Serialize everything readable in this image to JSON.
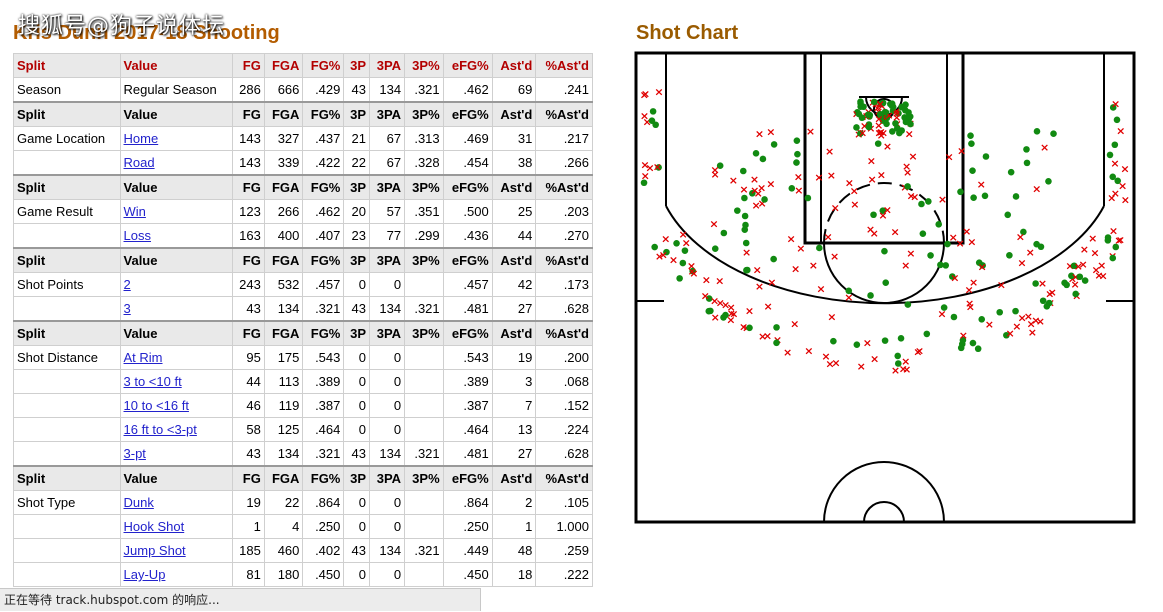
{
  "watermark": "搜狐号@狗子说体坛",
  "table_title": "Kris Dunn 2017-18 Shooting",
  "chart_title": "Shot Chart",
  "status_text": "正在等待 track.hubspot.com 的响应...",
  "columns": [
    "Split",
    "Value",
    "FG",
    "FGA",
    "FG%",
    "3P",
    "3PA",
    "3P%",
    "eFG%",
    "Ast'd",
    "%Ast'd"
  ],
  "groups": [
    {
      "rows": [
        [
          "Season",
          "Regular Season",
          "286",
          "666",
          ".429",
          "43",
          "134",
          ".321",
          ".462",
          "69",
          ".241"
        ]
      ],
      "links": false
    },
    {
      "rows": [
        [
          "Game Location",
          "Home",
          "143",
          "327",
          ".437",
          "21",
          "67",
          ".313",
          ".469",
          "31",
          ".217"
        ],
        [
          "",
          "Road",
          "143",
          "339",
          ".422",
          "22",
          "67",
          ".328",
          ".454",
          "38",
          ".266"
        ]
      ],
      "links": true
    },
    {
      "rows": [
        [
          "Game Result",
          "Win",
          "123",
          "266",
          ".462",
          "20",
          "57",
          ".351",
          ".500",
          "25",
          ".203"
        ],
        [
          "",
          "Loss",
          "163",
          "400",
          ".407",
          "23",
          "77",
          ".299",
          ".436",
          "44",
          ".270"
        ]
      ],
      "links": true
    },
    {
      "rows": [
        [
          "Shot Points",
          "2",
          "243",
          "532",
          ".457",
          "0",
          "0",
          "",
          ".457",
          "42",
          ".173"
        ],
        [
          "",
          "3",
          "43",
          "134",
          ".321",
          "43",
          "134",
          ".321",
          ".481",
          "27",
          ".628"
        ]
      ],
      "links": true
    },
    {
      "rows": [
        [
          "Shot Distance",
          "At Rim",
          "95",
          "175",
          ".543",
          "0",
          "0",
          "",
          ".543",
          "19",
          ".200"
        ],
        [
          "",
          "3 to <10 ft",
          "44",
          "113",
          ".389",
          "0",
          "0",
          "",
          ".389",
          "3",
          ".068"
        ],
        [
          "",
          "10 to <16 ft",
          "46",
          "119",
          ".387",
          "0",
          "0",
          "",
          ".387",
          "7",
          ".152"
        ],
        [
          "",
          "16 ft to <3-pt",
          "58",
          "125",
          ".464",
          "0",
          "0",
          "",
          ".464",
          "13",
          ".224"
        ],
        [
          "",
          "3-pt",
          "43",
          "134",
          ".321",
          "43",
          "134",
          ".321",
          ".481",
          "27",
          ".628"
        ]
      ],
      "links": true
    },
    {
      "rows": [
        [
          "Shot Type",
          "Dunk",
          "19",
          "22",
          ".864",
          "0",
          "0",
          "",
          ".864",
          "2",
          ".105"
        ],
        [
          "",
          "Hook Shot",
          "1",
          "4",
          ".250",
          "0",
          "0",
          "",
          ".250",
          "1",
          "1.000"
        ],
        [
          "",
          "Jump Shot",
          "185",
          "460",
          ".402",
          "43",
          "134",
          ".321",
          ".449",
          "48",
          ".259"
        ],
        [
          "",
          "Lay-Up",
          "81",
          "180",
          ".450",
          "0",
          "0",
          "",
          ".450",
          "18",
          ".222"
        ]
      ],
      "links": true
    }
  ],
  "colors": {
    "made": "#118a11",
    "missed": "#e00000",
    "header_red": "#b30000",
    "title": "#b35c00"
  }
}
